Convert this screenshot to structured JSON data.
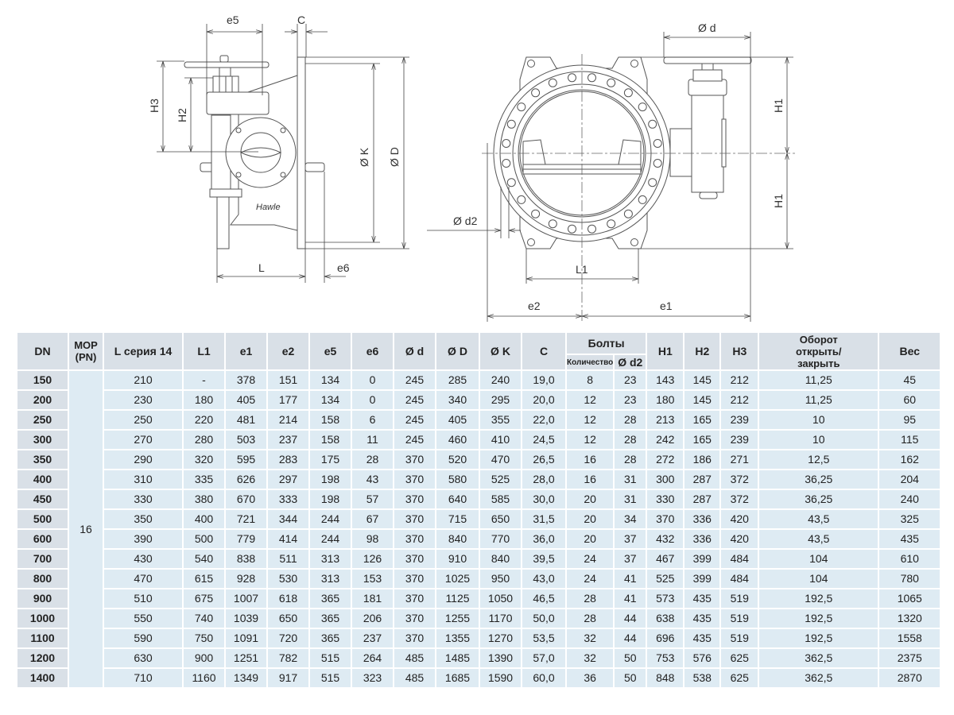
{
  "drawing_labels": {
    "side": {
      "e5": "e5",
      "C": "C",
      "H3": "H3",
      "H2": "H2",
      "K": "Ø K",
      "D": "Ø D",
      "L": "L",
      "e6": "e6",
      "logo": "Hawle"
    },
    "front": {
      "d": "Ø d",
      "H1_top": "H1",
      "H1_bottom": "H1",
      "d2": "Ø d2",
      "L1": "L1",
      "e2": "e2",
      "e1": "e1"
    }
  },
  "table": {
    "headers": {
      "dn": "DN",
      "mop": "МОР (PN)",
      "l": "L серия 14",
      "l1": "L1",
      "e1": "e1",
      "e2": "e2",
      "e5": "e5",
      "e6": "e6",
      "d": "Ø d",
      "D": "Ø D",
      "K": "Ø K",
      "c": "C",
      "bolts": "Болты",
      "bolts_qty": "Количество",
      "bolts_d2": "Ø d2",
      "h1": "H1",
      "h2": "H2",
      "h3": "H3",
      "turns": "Оборот открыть/закрыть",
      "weight": "Вес"
    },
    "mop_value": "16",
    "rows": [
      [
        "150",
        "210",
        "-",
        "378",
        "151",
        "134",
        "0",
        "245",
        "285",
        "240",
        "19,0",
        "8",
        "23",
        "143",
        "145",
        "212",
        "11,25",
        "45"
      ],
      [
        "200",
        "230",
        "180",
        "405",
        "177",
        "134",
        "0",
        "245",
        "340",
        "295",
        "20,0",
        "12",
        "23",
        "180",
        "145",
        "212",
        "11,25",
        "60"
      ],
      [
        "250",
        "250",
        "220",
        "481",
        "214",
        "158",
        "6",
        "245",
        "405",
        "355",
        "22,0",
        "12",
        "28",
        "213",
        "165",
        "239",
        "10",
        "95"
      ],
      [
        "300",
        "270",
        "280",
        "503",
        "237",
        "158",
        "11",
        "245",
        "460",
        "410",
        "24,5",
        "12",
        "28",
        "242",
        "165",
        "239",
        "10",
        "115"
      ],
      [
        "350",
        "290",
        "320",
        "595",
        "283",
        "175",
        "28",
        "370",
        "520",
        "470",
        "26,5",
        "16",
        "28",
        "272",
        "186",
        "271",
        "12,5",
        "162"
      ],
      [
        "400",
        "310",
        "335",
        "626",
        "297",
        "198",
        "43",
        "370",
        "580",
        "525",
        "28,0",
        "16",
        "31",
        "300",
        "287",
        "372",
        "36,25",
        "204"
      ],
      [
        "450",
        "330",
        "380",
        "670",
        "333",
        "198",
        "57",
        "370",
        "640",
        "585",
        "30,0",
        "20",
        "31",
        "330",
        "287",
        "372",
        "36,25",
        "240"
      ],
      [
        "500",
        "350",
        "400",
        "721",
        "344",
        "244",
        "67",
        "370",
        "715",
        "650",
        "31,5",
        "20",
        "34",
        "370",
        "336",
        "420",
        "43,5",
        "325"
      ],
      [
        "600",
        "390",
        "500",
        "779",
        "414",
        "244",
        "98",
        "370",
        "840",
        "770",
        "36,0",
        "20",
        "37",
        "432",
        "336",
        "420",
        "43,5",
        "435"
      ],
      [
        "700",
        "430",
        "540",
        "838",
        "511",
        "313",
        "126",
        "370",
        "910",
        "840",
        "39,5",
        "24",
        "37",
        "467",
        "399",
        "484",
        "104",
        "610"
      ],
      [
        "800",
        "470",
        "615",
        "928",
        "530",
        "313",
        "153",
        "370",
        "1025",
        "950",
        "43,0",
        "24",
        "41",
        "525",
        "399",
        "484",
        "104",
        "780"
      ],
      [
        "900",
        "510",
        "675",
        "1007",
        "618",
        "365",
        "181",
        "370",
        "1125",
        "1050",
        "46,5",
        "28",
        "41",
        "573",
        "435",
        "519",
        "192,5",
        "1065"
      ],
      [
        "1000",
        "550",
        "740",
        "1039",
        "650",
        "365",
        "206",
        "370",
        "1255",
        "1170",
        "50,0",
        "28",
        "44",
        "638",
        "435",
        "519",
        "192,5",
        "1320"
      ],
      [
        "1100",
        "590",
        "750",
        "1091",
        "720",
        "365",
        "237",
        "370",
        "1355",
        "1270",
        "53,5",
        "32",
        "44",
        "696",
        "435",
        "519",
        "192,5",
        "1558"
      ],
      [
        "1200",
        "630",
        "900",
        "1251",
        "782",
        "515",
        "264",
        "485",
        "1485",
        "1390",
        "57,0",
        "32",
        "50",
        "753",
        "576",
        "625",
        "362,5",
        "2375"
      ],
      [
        "1400",
        "710",
        "1160",
        "1349",
        "917",
        "515",
        "323",
        "485",
        "1685",
        "1590",
        "60,0",
        "36",
        "50",
        "848",
        "538",
        "625",
        "362,5",
        "2870"
      ]
    ]
  },
  "colors": {
    "header_bg": "#d9e0e7",
    "cell_bg": "#deebf3",
    "line": "#555555"
  }
}
